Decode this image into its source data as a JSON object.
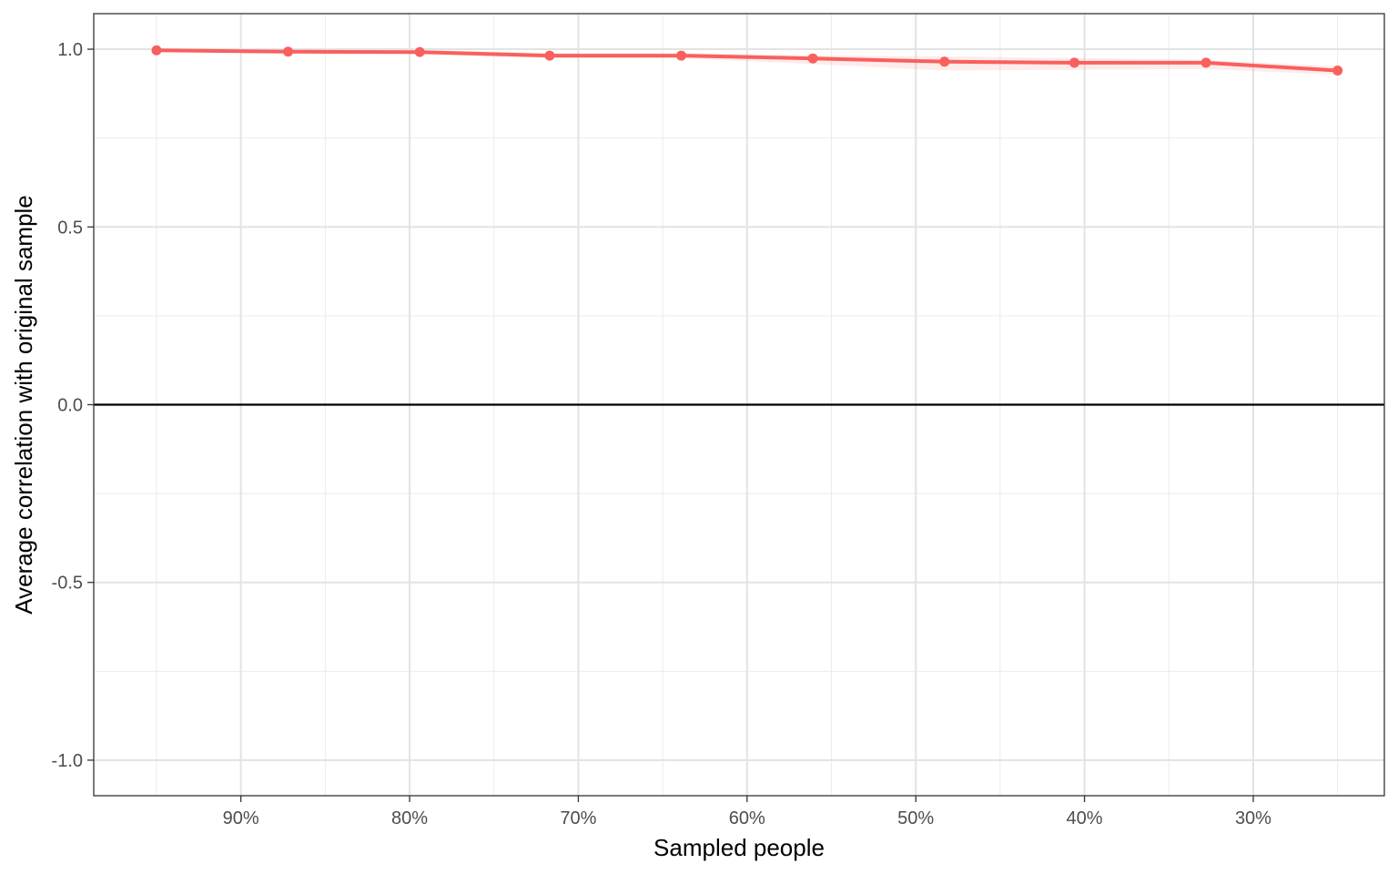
{
  "chart_data": {
    "type": "line",
    "title": "",
    "xlabel": "Sampled people",
    "ylabel": "Average correlation with original sample",
    "x_reversed": true,
    "xlim": [
      0.2223,
      0.9872
    ],
    "ylim": [
      -1.1,
      1.1
    ],
    "x_ticks": [
      {
        "value": 0.9,
        "label": "90%"
      },
      {
        "value": 0.8,
        "label": "80%"
      },
      {
        "value": 0.7,
        "label": "70%"
      },
      {
        "value": 0.6,
        "label": "60%"
      },
      {
        "value": 0.5,
        "label": "50%"
      },
      {
        "value": 0.4,
        "label": "40%"
      },
      {
        "value": 0.3,
        "label": "30%"
      }
    ],
    "y_ticks": [
      {
        "value": 1.0,
        "label": "1.0"
      },
      {
        "value": 0.5,
        "label": "0.5"
      },
      {
        "value": 0.0,
        "label": "0.0"
      },
      {
        "value": -0.5,
        "label": "-0.5"
      },
      {
        "value": -1.0,
        "label": "-1.0"
      }
    ],
    "grid": true,
    "reference_line_y": 0,
    "series": [
      {
        "color": "#f8605e",
        "x": [
          0.95,
          0.872,
          0.794,
          0.717,
          0.639,
          0.561,
          0.483,
          0.406,
          0.328,
          0.25
        ],
        "y": [
          0.997,
          0.993,
          0.992,
          0.982,
          0.982,
          0.974,
          0.965,
          0.962,
          0.962,
          0.94
        ],
        "ci_upper": [
          1.0,
          0.998,
          0.997,
          0.99,
          0.99,
          0.983,
          0.98,
          0.975,
          0.97,
          0.952
        ],
        "ci_lower": [
          0.993,
          0.988,
          0.986,
          0.975,
          0.974,
          0.958,
          0.94,
          0.942,
          0.944,
          0.928
        ]
      }
    ]
  }
}
